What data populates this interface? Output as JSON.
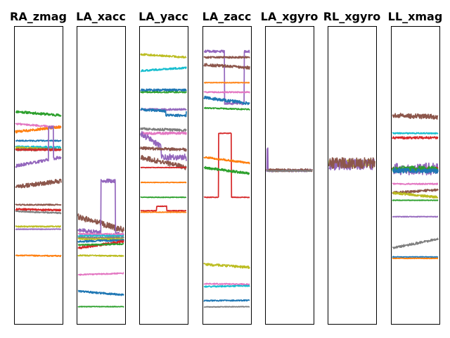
{
  "palette": [
    "#1f77b4",
    "#ff7f0e",
    "#2ca02c",
    "#d62728",
    "#9467bd",
    "#8c564b",
    "#e377c2",
    "#7f7f7f",
    "#bcbd22",
    "#17becf"
  ],
  "chart_data": {
    "type": "line",
    "layout": "small-multiples",
    "axes_visible": false,
    "grid": false,
    "legend": "none",
    "ylim": [
      0,
      1
    ],
    "note": "values are normalized vertical level (1 = top of panel); ticks are not shown",
    "panels": [
      {
        "title": "RA_zmag",
        "series": [
          {
            "color": "#2ca02c",
            "level": [
              0.713,
              0.7
            ],
            "noise": 0.004
          },
          {
            "color": "#e377c2",
            "level": [
              0.672,
              0.66
            ],
            "noise": 0.003
          },
          {
            "color": "#ff7f0e",
            "level": [
              0.645,
              0.662
            ],
            "noise": 0.004
          },
          {
            "color": "#1f77b4",
            "level": [
              0.615,
              0.615
            ],
            "noise": 0.002
          },
          {
            "color": "#17becf",
            "level": [
              0.595,
              0.593
            ],
            "noise": 0.003
          },
          {
            "color": "#bcbd22",
            "level": [
              0.592,
              0.585
            ],
            "noise": 0.003
          },
          {
            "color": "#8c564b",
            "level": [
              0.585,
              0.585
            ],
            "noise": 0.004
          },
          {
            "color": "#d62728",
            "level": [
              0.585,
              0.584
            ],
            "noise": 0.002
          },
          {
            "color": "#9467bd",
            "level": [
              0.53,
              0.56
            ],
            "noise": 0.005,
            "step": {
              "at": 0.72,
              "to": 0.66,
              "until": 0.83
            }
          },
          {
            "color": "#8c564b",
            "level": [
              0.46,
              0.48
            ],
            "noise": 0.007
          },
          {
            "color": "#8c564b",
            "level": [
              0.4,
              0.4
            ],
            "noise": 0.002
          },
          {
            "color": "#d62728",
            "level": [
              0.385,
              0.382
            ],
            "noise": 0.003
          },
          {
            "color": "#7f7f7f",
            "level": [
              0.378,
              0.372
            ],
            "noise": 0.002
          },
          {
            "color": "#bcbd22",
            "level": [
              0.327,
              0.327
            ],
            "noise": 0.002
          },
          {
            "color": "#9467bd",
            "level": [
              0.318,
              0.318
            ],
            "noise": 0.001
          },
          {
            "color": "#ff7f0e",
            "level": [
              0.23,
              0.228
            ],
            "noise": 0.002
          }
        ]
      },
      {
        "title": "LA_xacc",
        "series": [
          {
            "color": "#8c564b",
            "level": [
              0.36,
              0.315
            ],
            "noise": 0.01
          },
          {
            "color": "#9467bd",
            "level": [
              0.315,
              0.3
            ],
            "noise": 0.006,
            "step": {
              "at": 0.5,
              "to": 0.48,
              "until": 0.82
            }
          },
          {
            "color": "#e377c2",
            "level": [
              0.302,
              0.3
            ],
            "noise": 0.003
          },
          {
            "color": "#17becf",
            "level": [
              0.296,
              0.296
            ],
            "noise": 0.002
          },
          {
            "color": "#7f7f7f",
            "level": [
              0.29,
              0.29
            ],
            "noise": 0.002
          },
          {
            "color": "#bcbd22",
            "level": [
              0.285,
              0.285
            ],
            "noise": 0.002
          },
          {
            "color": "#1f77b4",
            "level": [
              0.277,
              0.281
            ],
            "noise": 0.003
          },
          {
            "color": "#d62728",
            "level": [
              0.255,
              0.277
            ],
            "noise": 0.004
          },
          {
            "color": "#2ca02c",
            "level": [
              0.265,
              0.268
            ],
            "noise": 0.002
          },
          {
            "color": "#bcbd22",
            "level": [
              0.23,
              0.228
            ],
            "noise": 0.002
          },
          {
            "color": "#e377c2",
            "level": [
              0.165,
              0.17
            ],
            "noise": 0.002
          },
          {
            "color": "#1f77b4",
            "level": [
              0.11,
              0.097
            ],
            "noise": 0.003
          },
          {
            "color": "#2ca02c",
            "level": [
              0.058,
              0.058
            ],
            "noise": 0.001
          }
        ]
      },
      {
        "title": "LA_yacc",
        "series": [
          {
            "color": "#bcbd22",
            "level": [
              0.905,
              0.895
            ],
            "noise": 0.003
          },
          {
            "color": "#17becf",
            "level": [
              0.85,
              0.86
            ],
            "noise": 0.003
          },
          {
            "color": "#1f77b4",
            "level": [
              0.785,
              0.785
            ],
            "noise": 0.004
          },
          {
            "color": "#2ca02c",
            "level": [
              0.778,
              0.778
            ],
            "noise": 0.002
          },
          {
            "color": "#9467bd",
            "level": [
              0.72,
              0.72
            ],
            "noise": 0.003
          },
          {
            "color": "#1f77b4",
            "level": [
              0.72,
              0.71
            ],
            "noise": 0.004,
            "step": {
              "at": 0.55,
              "to": 0.7,
              "until": 1.0
            }
          },
          {
            "color": "#7f7f7f",
            "level": [
              0.655,
              0.65
            ],
            "noise": 0.004
          },
          {
            "color": "#e377c2",
            "level": [
              0.64,
              0.64
            ],
            "noise": 0.004
          },
          {
            "color": "#9467bd",
            "level": [
              0.64,
              0.54
            ],
            "noise": 0.01,
            "step": {
              "at": 0.45,
              "to": 0.56,
              "until": 1.0
            }
          },
          {
            "color": "#8c564b",
            "level": [
              0.59,
              0.585
            ],
            "noise": 0.005
          },
          {
            "color": "#8c564b",
            "level": [
              0.56,
              0.525
            ],
            "noise": 0.008
          },
          {
            "color": "#d62728",
            "level": [
              0.525,
              0.525
            ],
            "noise": 0.001
          },
          {
            "color": "#2ca02c",
            "level": [
              0.425,
              0.425
            ],
            "noise": 0.001
          },
          {
            "color": "#ff7f0e",
            "level": [
              0.475,
              0.475
            ],
            "noise": 0.001
          },
          {
            "color": "#d62728",
            "level": [
              0.38,
              0.38
            ],
            "noise": 0.001,
            "step": {
              "at": 0.35,
              "to": 0.395,
              "until": 0.57
            }
          },
          {
            "color": "#ff7f0e",
            "level": [
              0.375,
              0.375
            ],
            "noise": 0.001
          }
        ]
      },
      {
        "title": "LA_zacc",
        "series": [
          {
            "color": "#9467bd",
            "level": [
              0.915,
              0.915
            ],
            "noise": 0.004,
            "step": {
              "at": 0.45,
              "to": 0.74,
              "until": 0.88
            }
          },
          {
            "color": "#8c564b",
            "level": [
              0.895,
              0.895
            ],
            "noise": 0.003
          },
          {
            "color": "#8c564b",
            "level": [
              0.87,
              0.86
            ],
            "noise": 0.005
          },
          {
            "color": "#ff7f0e",
            "level": [
              0.81,
              0.81
            ],
            "noise": 0.001
          },
          {
            "color": "#e377c2",
            "level": [
              0.778,
              0.778
            ],
            "noise": 0.002
          },
          {
            "color": "#1f77b4",
            "level": [
              0.76,
              0.74
            ],
            "noise": 0.005
          },
          {
            "color": "#2ca02c",
            "level": [
              0.725,
              0.72
            ],
            "noise": 0.002
          },
          {
            "color": "#d62728",
            "level": [
              0.425,
              0.425
            ],
            "noise": 0.001,
            "step": {
              "at": 0.32,
              "to": 0.64,
              "until": 0.6
            }
          },
          {
            "color": "#ff7f0e",
            "level": [
              0.56,
              0.54
            ],
            "noise": 0.003
          },
          {
            "color": "#2ca02c",
            "level": [
              0.525,
              0.505
            ],
            "noise": 0.004
          },
          {
            "color": "#bcbd22",
            "level": [
              0.2,
              0.19
            ],
            "noise": 0.004
          },
          {
            "color": "#e377c2",
            "level": [
              0.135,
              0.133
            ],
            "noise": 0.002
          },
          {
            "color": "#17becf",
            "level": [
              0.125,
              0.128
            ],
            "noise": 0.002
          },
          {
            "color": "#1f77b4",
            "level": [
              0.078,
              0.079
            ],
            "noise": 0.002
          },
          {
            "color": "#7f7f7f",
            "level": [
              0.057,
              0.058
            ],
            "noise": 0.001
          }
        ]
      },
      {
        "title": "LA_xgyro",
        "series": [
          {
            "color": "#9467bd",
            "level": [
              0.515,
              0.515
            ],
            "noise": 0.004,
            "spike": {
              "at": 0.02,
              "to": 0.59
            }
          },
          {
            "color": "#8c564b",
            "level": [
              0.516,
              0.516
            ],
            "noise": 0.005
          },
          {
            "color": "#7f7f7f",
            "level": [
              0.514,
              0.514
            ],
            "noise": 0.002
          }
        ]
      },
      {
        "title": "RL_xgyro",
        "series": [
          {
            "color": "#bcbd22",
            "level": [
              0.54,
              0.54
            ],
            "noise": 0.012
          },
          {
            "color": "#9467bd",
            "level": [
              0.535,
              0.535
            ],
            "noise": 0.02
          },
          {
            "color": "#8c564b",
            "level": [
              0.54,
              0.54
            ],
            "noise": 0.018
          }
        ]
      },
      {
        "title": "LL_xmag",
        "series": [
          {
            "color": "#8c564b",
            "level": [
              0.7,
              0.695
            ],
            "noise": 0.008
          },
          {
            "color": "#17becf",
            "level": [
              0.64,
              0.64
            ],
            "noise": 0.002
          },
          {
            "color": "#d62728",
            "level": [
              0.625,
              0.625
            ],
            "noise": 0.004
          },
          {
            "color": "#9467bd",
            "level": [
              0.52,
              0.52
            ],
            "noise": 0.02
          },
          {
            "color": "#d62728",
            "level": [
              0.52,
              0.522
            ],
            "noise": 0.004
          },
          {
            "color": "#2ca02c",
            "level": [
              0.52,
              0.52
            ],
            "noise": 0.01
          },
          {
            "color": "#1f77b4",
            "level": [
              0.515,
              0.513
            ],
            "noise": 0.008
          },
          {
            "color": "#e377c2",
            "level": [
              0.47,
              0.47
            ],
            "noise": 0.002
          },
          {
            "color": "#8c564b",
            "level": [
              0.44,
              0.45
            ],
            "noise": 0.004
          },
          {
            "color": "#bcbd22",
            "level": [
              0.44,
              0.425
            ],
            "noise": 0.004
          },
          {
            "color": "#2ca02c",
            "level": [
              0.415,
              0.415
            ],
            "noise": 0.001
          },
          {
            "color": "#9467bd",
            "level": [
              0.36,
              0.36
            ],
            "noise": 0.001
          },
          {
            "color": "#7f7f7f",
            "level": [
              0.255,
              0.285
            ],
            "noise": 0.004
          },
          {
            "color": "#1f77b4",
            "level": [
              0.225,
              0.225
            ],
            "noise": 0.001
          },
          {
            "color": "#ff7f0e",
            "level": [
              0.22,
              0.22
            ],
            "noise": 0.001
          }
        ]
      }
    ]
  }
}
